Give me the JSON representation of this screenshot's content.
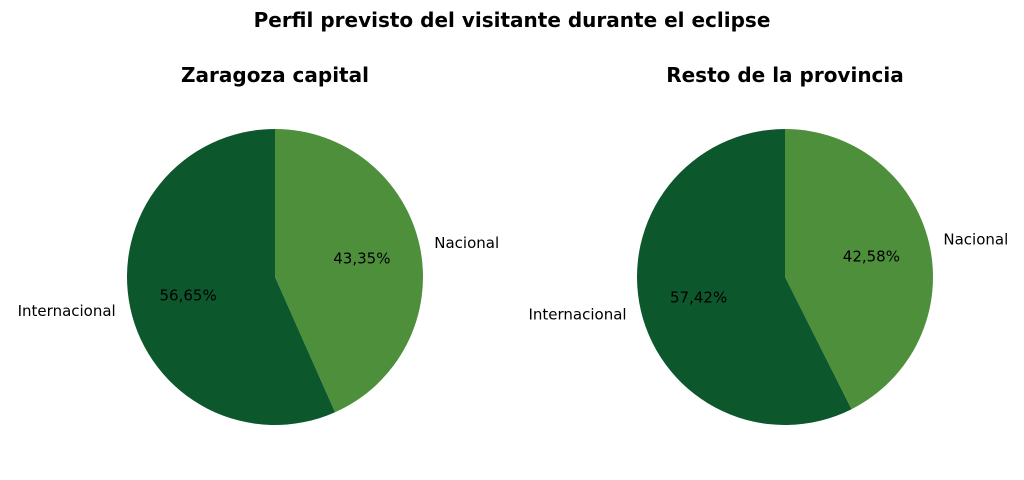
{
  "suptitle": "Perfil previsto del visitante durante el eclipse",
  "chart_data": [
    {
      "type": "pie",
      "title": "Zaragoza capital",
      "slices": [
        {
          "label": "Nacional",
          "value": 43.35,
          "value_label": "43,35%",
          "color": "#4e8f3b"
        },
        {
          "label": "Internacional",
          "value": 56.65,
          "value_label": "56,65%",
          "color": "#0c572b"
        }
      ],
      "start_angle": 90,
      "direction": "clockwise"
    },
    {
      "type": "pie",
      "title": "Resto de la provincia",
      "slices": [
        {
          "label": "Nacional",
          "value": 42.58,
          "value_label": "42,58%",
          "color": "#4e8f3b"
        },
        {
          "label": "Internacional",
          "value": 57.42,
          "value_label": "57,42%",
          "color": "#0c572b"
        }
      ],
      "start_angle": 90,
      "direction": "clockwise"
    }
  ]
}
